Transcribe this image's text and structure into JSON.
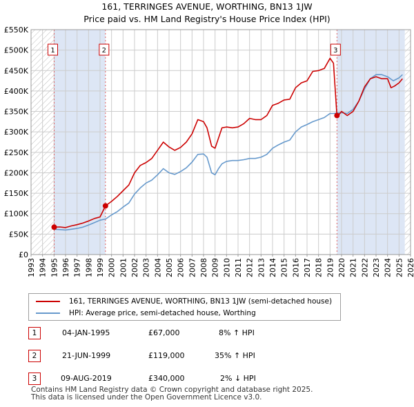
{
  "title": {
    "line1": "161, TERRINGES AVENUE, WORTHING, BN13 1JW",
    "line2": "Price paid vs. HM Land Registry's House Price Index (HPI)"
  },
  "colors": {
    "price_line": "#cc0000",
    "hpi_line": "#6699cc",
    "shade": "#dde6f5",
    "grid": "#cccccc",
    "vline": "#e06060",
    "hatch": "#bbbbbb"
  },
  "chart_data": {
    "type": "line",
    "x_range": [
      1993,
      2026
    ],
    "ylim": [
      0,
      550000
    ],
    "yticks": [
      {
        "v": 0,
        "label": "£0"
      },
      {
        "v": 50000,
        "label": "£50K"
      },
      {
        "v": 100000,
        "label": "£100K"
      },
      {
        "v": 150000,
        "label": "£150K"
      },
      {
        "v": 200000,
        "label": "£200K"
      },
      {
        "v": 250000,
        "label": "£250K"
      },
      {
        "v": 300000,
        "label": "£300K"
      },
      {
        "v": 350000,
        "label": "£350K"
      },
      {
        "v": 400000,
        "label": "£400K"
      },
      {
        "v": 450000,
        "label": "£450K"
      },
      {
        "v": 500000,
        "label": "£500K"
      },
      {
        "v": 550000,
        "label": "£550K"
      }
    ],
    "xticks": [
      "1993",
      "1994",
      "1995",
      "1996",
      "1997",
      "1998",
      "1999",
      "2000",
      "2001",
      "2002",
      "2003",
      "2004",
      "2005",
      "2006",
      "2007",
      "2008",
      "2009",
      "2010",
      "2011",
      "2012",
      "2013",
      "2014",
      "2015",
      "2016",
      "2017",
      "2018",
      "2019",
      "2020",
      "2021",
      "2022",
      "2023",
      "2024",
      "2025",
      "2026"
    ],
    "data_range": [
      1995.0,
      2025.5
    ],
    "shaded_ranges": [
      [
        1995.01,
        1999.47
      ],
      [
        2019.6,
        2025.5
      ]
    ],
    "series": [
      {
        "name": "161, TERRINGES AVENUE, WORTHING, BN13 1JW (semi-detached house)",
        "color": "#cc0000",
        "x": [
          1995.01,
          1995.5,
          1996,
          1996.5,
          1997,
          1997.5,
          1998,
          1998.5,
          1999,
          1999.47,
          2000,
          2000.5,
          2001,
          2001.5,
          2002,
          2002.5,
          2003,
          2003.5,
          2004,
          2004.5,
          2005,
          2005.5,
          2006,
          2006.5,
          2007,
          2007.5,
          2008,
          2008.3,
          2008.7,
          2009,
          2009.3,
          2009.6,
          2010,
          2010.5,
          2011,
          2011.5,
          2012,
          2012.5,
          2013,
          2013.5,
          2014,
          2014.5,
          2015,
          2015.5,
          2016,
          2016.5,
          2017,
          2017.5,
          2018,
          2018.5,
          2019,
          2019.3,
          2019.6,
          2019.8,
          2020,
          2020.5,
          2021,
          2021.5,
          2022,
          2022.5,
          2023,
          2023.5,
          2024,
          2024.3,
          2024.6,
          2025,
          2025.3
        ],
        "y": [
          67000,
          67500,
          66000,
          70000,
          73000,
          77000,
          82000,
          88000,
          92000,
          119000,
          130000,
          142000,
          156000,
          170000,
          200000,
          218000,
          225000,
          235000,
          255000,
          275000,
          263000,
          255000,
          262000,
          275000,
          295000,
          330000,
          325000,
          310000,
          265000,
          260000,
          285000,
          310000,
          312000,
          310000,
          312000,
          320000,
          333000,
          330000,
          330000,
          340000,
          365000,
          370000,
          378000,
          380000,
          408000,
          420000,
          425000,
          448000,
          450000,
          455000,
          480000,
          468000,
          340000,
          343000,
          350000,
          340000,
          350000,
          375000,
          410000,
          430000,
          435000,
          430000,
          430000,
          408000,
          412000,
          420000,
          430000
        ]
      },
      {
        "name": "HPI: Average price, semi-detached house, Worthing",
        "color": "#6699cc",
        "x": [
          1995,
          1995.5,
          1996,
          1996.5,
          1997,
          1997.5,
          1998,
          1998.5,
          1999,
          1999.5,
          2000,
          2000.5,
          2001,
          2001.5,
          2002,
          2002.5,
          2003,
          2003.5,
          2004,
          2004.5,
          2005,
          2005.5,
          2006,
          2006.5,
          2007,
          2007.5,
          2008,
          2008.3,
          2008.7,
          2009,
          2009.3,
          2009.6,
          2010,
          2010.5,
          2011,
          2011.5,
          2012,
          2012.5,
          2013,
          2013.5,
          2014,
          2014.5,
          2015,
          2015.5,
          2016,
          2016.5,
          2017,
          2017.5,
          2018,
          2018.5,
          2019,
          2019.3,
          2019.6,
          2020,
          2020.5,
          2021,
          2021.5,
          2022,
          2022.5,
          2023,
          2023.5,
          2024,
          2024.5,
          2025,
          2025.3
        ],
        "y": [
          62000,
          61000,
          60000,
          62000,
          64000,
          67000,
          72000,
          78000,
          84000,
          87000,
          97000,
          105000,
          116000,
          126000,
          148000,
          163000,
          175000,
          182000,
          195000,
          210000,
          200000,
          196000,
          203000,
          212000,
          226000,
          245000,
          246000,
          238000,
          200000,
          195000,
          210000,
          222000,
          228000,
          230000,
          230000,
          232000,
          235000,
          235000,
          238000,
          245000,
          260000,
          268000,
          275000,
          280000,
          300000,
          312000,
          318000,
          325000,
          330000,
          335000,
          345000,
          345000,
          346000,
          347000,
          345000,
          355000,
          375000,
          405000,
          430000,
          440000,
          440000,
          435000,
          425000,
          432000,
          440000
        ]
      }
    ],
    "sales": [
      {
        "id": "1",
        "x": 1995.01,
        "y": 67000
      },
      {
        "id": "2",
        "x": 1999.47,
        "y": 119000
      },
      {
        "id": "3",
        "x": 2019.6,
        "y": 340000
      }
    ]
  },
  "legend": {
    "price_label": "161, TERRINGES AVENUE, WORTHING, BN13 1JW (semi-detached house)",
    "hpi_label": "HPI: Average price, semi-detached house, Worthing"
  },
  "transactions": [
    {
      "num": "1",
      "date": "04-JAN-1995",
      "price": "£67,000",
      "hpi": "8% ↑ HPI"
    },
    {
      "num": "2",
      "date": "21-JUN-1999",
      "price": "£119,000",
      "hpi": "35% ↑ HPI"
    },
    {
      "num": "3",
      "date": "09-AUG-2019",
      "price": "£340,000",
      "hpi": "2% ↓ HPI"
    }
  ],
  "footer": {
    "line1": "Contains HM Land Registry data © Crown copyright and database right 2025.",
    "line2": "This data is licensed under the Open Government Licence v3.0."
  }
}
